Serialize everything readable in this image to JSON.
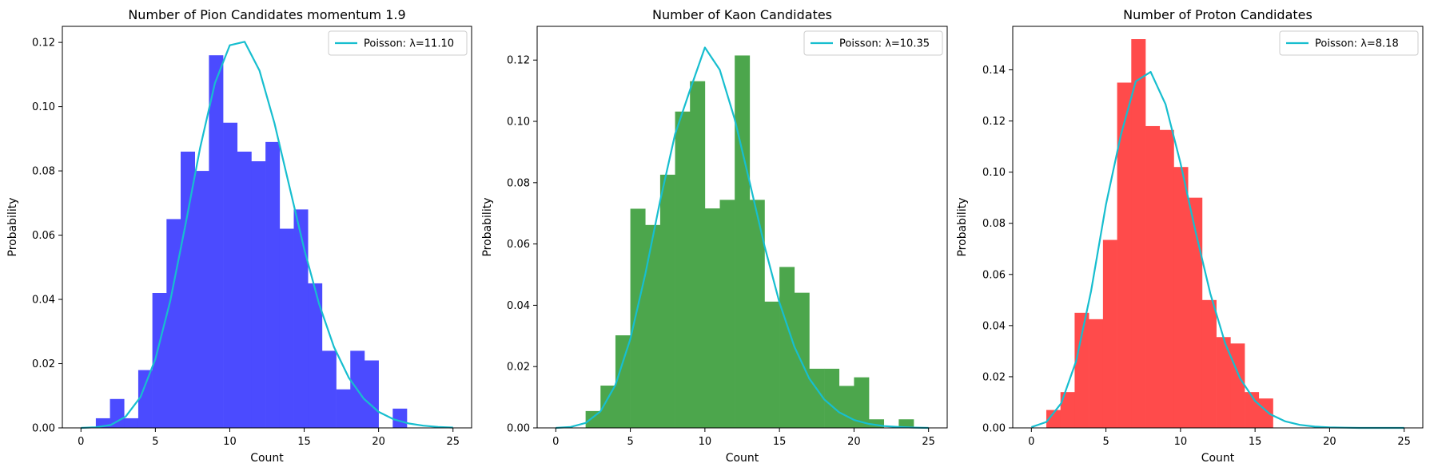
{
  "figure": {
    "background": "#ffffff"
  },
  "chart_data": [
    {
      "type": "bar",
      "title": "Number of Pion Candidates momentum 1.9",
      "xlabel": "Count",
      "ylabel": "Probability",
      "xlim": [
        -1.25,
        26.25
      ],
      "ylim": [
        0,
        0.125
      ],
      "xticks": [
        0,
        5,
        10,
        15,
        20,
        25
      ],
      "yticks": [
        0.0,
        0.02,
        0.04,
        0.06,
        0.08,
        0.1,
        0.12
      ],
      "ytick_labels": [
        "0.00",
        "0.02",
        "0.04",
        "0.06",
        "0.08",
        "0.10",
        "0.12"
      ],
      "bin_width": 0.95,
      "bins": [
        {
          "x0": 1.0,
          "y": 0.003
        },
        {
          "x0": 1.95,
          "y": 0.009
        },
        {
          "x0": 2.9,
          "y": 0.003
        },
        {
          "x0": 3.85,
          "y": 0.018
        },
        {
          "x0": 4.8,
          "y": 0.042
        },
        {
          "x0": 5.75,
          "y": 0.065
        },
        {
          "x0": 6.7,
          "y": 0.086
        },
        {
          "x0": 7.65,
          "y": 0.08
        },
        {
          "x0": 8.6,
          "y": 0.116
        },
        {
          "x0": 9.55,
          "y": 0.095
        },
        {
          "x0": 10.5,
          "y": 0.086
        },
        {
          "x0": 11.45,
          "y": 0.083
        },
        {
          "x0": 12.4,
          "y": 0.089
        },
        {
          "x0": 13.35,
          "y": 0.062
        },
        {
          "x0": 14.3,
          "y": 0.068
        },
        {
          "x0": 15.25,
          "y": 0.045
        },
        {
          "x0": 16.2,
          "y": 0.024
        },
        {
          "x0": 17.15,
          "y": 0.012
        },
        {
          "x0": 18.1,
          "y": 0.024
        },
        {
          "x0": 19.05,
          "y": 0.021
        },
        {
          "x0": 20.0,
          "y": 0.0
        },
        {
          "x0": 20.95,
          "y": 0.006
        }
      ],
      "bar_color": "#4b4bff",
      "line": {
        "name": "Poisson: λ=11.10",
        "color": "#17becf",
        "x": [
          0,
          1,
          2,
          3,
          4,
          5,
          6,
          7,
          8,
          9,
          10,
          11,
          12,
          13,
          14,
          15,
          16,
          17,
          18,
          19,
          20,
          21,
          22,
          23,
          24,
          25
        ],
        "y": [
          0.0,
          0.0002,
          0.0009,
          0.0035,
          0.0096,
          0.0214,
          0.0395,
          0.0627,
          0.087,
          0.1073,
          0.1191,
          0.1202,
          0.1112,
          0.0949,
          0.0753,
          0.0557,
          0.0386,
          0.0252,
          0.0156,
          0.0091,
          0.005,
          0.0027,
          0.0014,
          0.0007,
          0.0003,
          0.0001
        ]
      },
      "legend_position": "top-right"
    },
    {
      "type": "bar",
      "title": "Number of Kaon Candidates",
      "xlabel": "Count",
      "ylabel": "Probability",
      "xlim": [
        -1.25,
        26.25
      ],
      "ylim": [
        0,
        0.131
      ],
      "xticks": [
        0,
        5,
        10,
        15,
        20,
        25
      ],
      "yticks": [
        0.0,
        0.02,
        0.04,
        0.06,
        0.08,
        0.1,
        0.12
      ],
      "ytick_labels": [
        "0.00",
        "0.02",
        "0.04",
        "0.06",
        "0.08",
        "0.10",
        "0.12"
      ],
      "bin_width": 1.0,
      "bins": [
        {
          "x0": 2.0,
          "y": 0.0055
        },
        {
          "x0": 3.0,
          "y": 0.0138
        },
        {
          "x0": 4.0,
          "y": 0.0302
        },
        {
          "x0": 5.0,
          "y": 0.0715
        },
        {
          "x0": 6.0,
          "y": 0.0662
        },
        {
          "x0": 7.0,
          "y": 0.0826
        },
        {
          "x0": 8.0,
          "y": 0.1032
        },
        {
          "x0": 9.0,
          "y": 0.1131
        },
        {
          "x0": 10.0,
          "y": 0.0716
        },
        {
          "x0": 11.0,
          "y": 0.0744
        },
        {
          "x0": 12.0,
          "y": 0.1215
        },
        {
          "x0": 13.0,
          "y": 0.0744
        },
        {
          "x0": 14.0,
          "y": 0.0412
        },
        {
          "x0": 15.0,
          "y": 0.0525
        },
        {
          "x0": 16.0,
          "y": 0.0441
        },
        {
          "x0": 17.0,
          "y": 0.0193
        },
        {
          "x0": 18.0,
          "y": 0.0193
        },
        {
          "x0": 19.0,
          "y": 0.0137
        },
        {
          "x0": 20.0,
          "y": 0.0165
        },
        {
          "x0": 21.0,
          "y": 0.0028
        },
        {
          "x0": 22.0,
          "y": 0.0
        },
        {
          "x0": 23.0,
          "y": 0.0028
        }
      ],
      "bar_color": "#4ca64c",
      "line": {
        "name": "Poisson: λ=10.35",
        "color": "#17becf",
        "x": [
          0,
          1,
          2,
          3,
          4,
          5,
          6,
          7,
          8,
          9,
          10,
          11,
          12,
          13,
          14,
          15,
          16,
          17,
          18,
          19,
          20,
          21,
          22,
          23,
          24,
          25
        ],
        "y": [
          0.0,
          0.0003,
          0.0016,
          0.0054,
          0.014,
          0.029,
          0.0501,
          0.0741,
          0.0958,
          0.1102,
          0.1241,
          0.1168,
          0.1007,
          0.0802,
          0.0593,
          0.0409,
          0.0265,
          0.0161,
          0.0093,
          0.0051,
          0.0026,
          0.0013,
          0.0006,
          0.0003,
          0.0001,
          0.0
        ]
      },
      "legend_position": "top-right"
    },
    {
      "type": "bar",
      "title": "Number of Proton Candidates",
      "xlabel": "Count",
      "ylabel": "Probability",
      "xlim": [
        -1.25,
        26.25
      ],
      "ylim": [
        0,
        0.157
      ],
      "xticks": [
        0,
        5,
        10,
        15,
        20,
        25
      ],
      "yticks": [
        0.0,
        0.02,
        0.04,
        0.06,
        0.08,
        0.1,
        0.12,
        0.14
      ],
      "ytick_labels": [
        "0.00",
        "0.02",
        "0.04",
        "0.06",
        "0.08",
        "0.10",
        "0.12",
        "0.14"
      ],
      "bin_width": 0.95,
      "bins": [
        {
          "x0": 1.0,
          "y": 0.007
        },
        {
          "x0": 1.95,
          "y": 0.014
        },
        {
          "x0": 2.9,
          "y": 0.045
        },
        {
          "x0": 3.85,
          "y": 0.0425
        },
        {
          "x0": 4.8,
          "y": 0.0735
        },
        {
          "x0": 5.75,
          "y": 0.135
        },
        {
          "x0": 6.7,
          "y": 0.152
        },
        {
          "x0": 7.65,
          "y": 0.118
        },
        {
          "x0": 8.6,
          "y": 0.1165
        },
        {
          "x0": 9.55,
          "y": 0.102
        },
        {
          "x0": 10.5,
          "y": 0.09
        },
        {
          "x0": 11.45,
          "y": 0.05
        },
        {
          "x0": 12.4,
          "y": 0.0355
        },
        {
          "x0": 13.35,
          "y": 0.033
        },
        {
          "x0": 14.3,
          "y": 0.014
        },
        {
          "x0": 15.25,
          "y": 0.0115
        }
      ],
      "bar_color": "#ff4b4b",
      "line": {
        "name": "Poisson: λ=8.18",
        "color": "#17becf",
        "x": [
          0,
          1,
          2,
          3,
          4,
          5,
          6,
          7,
          8,
          9,
          10,
          11,
          12,
          13,
          14,
          15,
          16,
          17,
          18,
          19,
          20,
          21,
          22,
          23,
          24,
          25
        ],
        "y": [
          0.0003,
          0.0023,
          0.0096,
          0.0261,
          0.0534,
          0.0873,
          0.1145,
          0.1355,
          0.1392,
          0.1265,
          0.1035,
          0.077,
          0.0525,
          0.033,
          0.0193,
          0.0105,
          0.0054,
          0.0026,
          0.0012,
          0.0005,
          0.0002,
          0.0001,
          0.0,
          0.0,
          0.0,
          0.0
        ]
      },
      "legend_position": "top-right"
    }
  ]
}
